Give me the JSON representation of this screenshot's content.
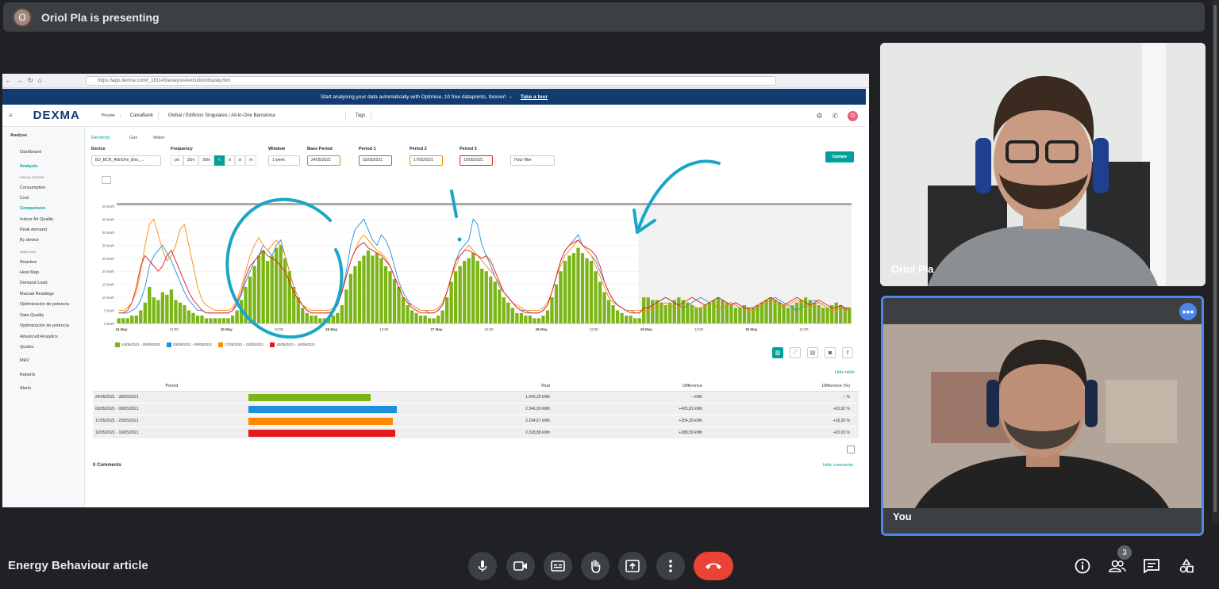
{
  "header": {
    "avatar_letter": "O",
    "title": "Oriol Pla is presenting"
  },
  "browser": {
    "url": "https://app.dexma.com/l_181143/analysis/evolution/display.htm"
  },
  "banner": {
    "text": "Start analysing your data automatically with Optimise. 10 free datapoints, forever! →",
    "cta": "Take a tour"
  },
  "app_header": {
    "logo": "DEXMA",
    "org_label": "Private",
    "org": "CaixaBank",
    "path": "Global / Edificios Singulares / All-in-One Barcelona",
    "tags": "Tags",
    "profile_letter": "O"
  },
  "sidebar": {
    "analyse": "Analyse",
    "dashboard": "Dashboard",
    "analysis": "Analysis",
    "visualization": "VISUALIZATION",
    "consumption": "Consumption",
    "cost": "Cost",
    "comparison": "Comparison",
    "iaq": "Indoor Air Quality",
    "peak": "Peak demand",
    "bydevice": "By device",
    "analysis_sec": "ANALYSIS",
    "reactive": "Reactive",
    "heatmap": "Heat Map",
    "demandload": "Demand Load",
    "manual": "Manual Readings",
    "opt1": "Optimización de potencia",
    "dq": "Data Quality",
    "opt2": "Optimización de potencia",
    "adv": "Advanced Analytics",
    "quotes": "Quotes",
    "mv": "M&V",
    "reports": "Reports",
    "alerts": "Alerts"
  },
  "filters": {
    "types": [
      "Electricity",
      "Gas",
      "Water"
    ],
    "device_label": "Device",
    "device": "ED_BCN_AllInOne_Elec_...",
    "frequency_label": "Frequency",
    "frequency": [
      "pd",
      "15m",
      "30m",
      "h",
      "d",
      "w",
      "m"
    ],
    "frequency_selected": "h",
    "window_label": "Window",
    "window": "1 week",
    "base_label": "Base Period",
    "base": "24/05/2021",
    "p1_label": "Period 1",
    "p1": "03/05/2021",
    "p2_label": "Period 2",
    "p2": "17/05/2021",
    "p3_label": "Period 3",
    "p3": "10/05/2021",
    "hour_filter": "Hour filter",
    "update": "Update"
  },
  "chart_data": {
    "type": "line",
    "ylabel": "kWh",
    "yticks": [
      "45 kWh",
      "40 kWh",
      "35 kWh",
      "30 kWh",
      "25 kWh",
      "20 kWh",
      "15 kWh",
      "10 kWh",
      "5 kWh",
      "0 kWh"
    ],
    "ylim": [
      0,
      45
    ],
    "xticks": [
      "24 May",
      "12:00",
      "25 May",
      "12:00",
      "26 May",
      "12:00",
      "27 May",
      "12:00",
      "28 May",
      "12:00",
      "29 May",
      "12:00",
      "30 May",
      "12:00"
    ],
    "series": [
      {
        "name": "24/05/2021 - 30/05/2021",
        "color": "#7cb518",
        "kind": "bar",
        "values": [
          2,
          2,
          2,
          3,
          3,
          5,
          8,
          14,
          10,
          9,
          12,
          11,
          13,
          9,
          8,
          7,
          5,
          4,
          3,
          3,
          2,
          2,
          2,
          2,
          2,
          2,
          3,
          5,
          9,
          14,
          18,
          22,
          26,
          28,
          24,
          26,
          29,
          30,
          25,
          20,
          14,
          10,
          6,
          4,
          3,
          3,
          2,
          2,
          2,
          3,
          4,
          7,
          13,
          19,
          22,
          24,
          26,
          28,
          26,
          27,
          25,
          22,
          20,
          17,
          14,
          10,
          7,
          5,
          4,
          3,
          3,
          2,
          2,
          3,
          5,
          10,
          16,
          20,
          22,
          24,
          25,
          27,
          24,
          21,
          20,
          18,
          16,
          13,
          10,
          8,
          6,
          4,
          4,
          3,
          3,
          2,
          2,
          3,
          5,
          10,
          15,
          20,
          24,
          26,
          27,
          29,
          27,
          25,
          24,
          20,
          16,
          12,
          9,
          7,
          5,
          4,
          3,
          3,
          2,
          2,
          10,
          10,
          9,
          9,
          8,
          7,
          8,
          9,
          10,
          9,
          8,
          7,
          6,
          6,
          7,
          8,
          9,
          10,
          9,
          8,
          7,
          6,
          6,
          7,
          6,
          6,
          7,
          8,
          9,
          10,
          9,
          8,
          7,
          6,
          7,
          8,
          9,
          10,
          9,
          8,
          7,
          6,
          6,
          7,
          8,
          7,
          6,
          6
        ]
      },
      {
        "name": "03/05/2021 - 09/05/2021",
        "color": "#1f8fdc",
        "kind": "line",
        "values": [
          4,
          4,
          4,
          5,
          6,
          9,
          14,
          22,
          26,
          28,
          30,
          27,
          24,
          20,
          16,
          12,
          9,
          7,
          5,
          5,
          4,
          4,
          4,
          4,
          4,
          4,
          5,
          7,
          11,
          16,
          20,
          24,
          26,
          30,
          28,
          26,
          30,
          32,
          26,
          20,
          14,
          10,
          7,
          5,
          4,
          4,
          4,
          4,
          4,
          5,
          7,
          12,
          20,
          30,
          36,
          38,
          40,
          36,
          32,
          30,
          34,
          32,
          28,
          22,
          16,
          12,
          9,
          7,
          6,
          5,
          5,
          4,
          4,
          5,
          7,
          12,
          18,
          24,
          28,
          30,
          32,
          40,
          38,
          30,
          26,
          22,
          18,
          14,
          12,
          10,
          8,
          6,
          5,
          5,
          4,
          4,
          4,
          5,
          7,
          12,
          18,
          24,
          28,
          30,
          32,
          34,
          30,
          28,
          26,
          24,
          20,
          16,
          12,
          9,
          7,
          6,
          5,
          5,
          4,
          4,
          6,
          6,
          7,
          8,
          9,
          10,
          9,
          8,
          7,
          6,
          7,
          8,
          9,
          10,
          9,
          8,
          7,
          6,
          6,
          7,
          8,
          7,
          6,
          6,
          5,
          5,
          6,
          7,
          8,
          9,
          10,
          9,
          8,
          7,
          6,
          5,
          6,
          7,
          8,
          9,
          8,
          7,
          6,
          5,
          5,
          6,
          6,
          5
        ]
      },
      {
        "name": "17/05/2021 - 23/05/2021",
        "color": "#ff8a00",
        "kind": "line",
        "values": [
          5,
          5,
          6,
          8,
          12,
          20,
          30,
          38,
          40,
          34,
          28,
          24,
          26,
          30,
          36,
          38,
          30,
          22,
          14,
          9,
          7,
          6,
          5,
          5,
          5,
          5,
          6,
          9,
          14,
          20,
          26,
          30,
          33,
          30,
          28,
          30,
          32,
          30,
          26,
          20,
          14,
          10,
          7,
          6,
          5,
          5,
          5,
          5,
          5,
          6,
          8,
          12,
          18,
          24,
          28,
          32,
          34,
          32,
          30,
          28,
          27,
          25,
          22,
          18,
          14,
          10,
          8,
          7,
          6,
          5,
          5,
          5,
          5,
          6,
          8,
          12,
          18,
          22,
          26,
          28,
          30,
          28,
          26,
          24,
          22,
          20,
          18,
          15,
          12,
          10,
          8,
          7,
          6,
          5,
          5,
          5,
          5,
          6,
          8,
          12,
          18,
          22,
          26,
          28,
          30,
          32,
          30,
          28,
          26,
          22,
          18,
          14,
          10,
          8,
          7,
          6,
          5,
          5,
          5,
          5,
          5,
          5,
          6,
          6,
          7,
          8,
          7,
          6,
          6,
          7,
          8,
          7,
          6,
          6,
          7,
          8,
          7,
          6,
          6,
          7,
          8,
          7,
          6,
          6,
          5,
          5,
          6,
          7,
          8,
          9,
          8,
          7,
          6,
          7,
          8,
          9,
          8,
          7,
          6,
          7,
          8,
          7,
          6,
          5,
          5,
          6,
          5,
          5
        ]
      },
      {
        "name": "10/05/2021 - 16/05/2021",
        "color": "#e31a1c",
        "kind": "line",
        "values": [
          4,
          4,
          5,
          8,
          14,
          22,
          26,
          24,
          22,
          20,
          22,
          26,
          28,
          24,
          20,
          16,
          12,
          9,
          7,
          5,
          4,
          4,
          4,
          4,
          4,
          4,
          5,
          8,
          12,
          18,
          22,
          24,
          26,
          28,
          26,
          25,
          24,
          22,
          20,
          16,
          12,
          9,
          7,
          5,
          4,
          4,
          4,
          4,
          4,
          5,
          7,
          12,
          18,
          24,
          28,
          30,
          31,
          29,
          28,
          27,
          26,
          24,
          22,
          18,
          14,
          10,
          8,
          6,
          5,
          4,
          4,
          4,
          4,
          5,
          7,
          12,
          18,
          24,
          26,
          28,
          28,
          27,
          26,
          25,
          26,
          24,
          20,
          16,
          12,
          10,
          8,
          6,
          5,
          4,
          4,
          4,
          4,
          5,
          7,
          12,
          18,
          24,
          28,
          30,
          31,
          32,
          30,
          29,
          28,
          26,
          22,
          16,
          12,
          9,
          7,
          6,
          5,
          4,
          4,
          4,
          6,
          6,
          7,
          8,
          9,
          10,
          9,
          8,
          7,
          8,
          9,
          10,
          9,
          8,
          7,
          8,
          9,
          10,
          9,
          8,
          7,
          8,
          7,
          6,
          6,
          6,
          7,
          8,
          9,
          10,
          9,
          8,
          7,
          8,
          9,
          10,
          9,
          8,
          7,
          8,
          9,
          8,
          7,
          6,
          6,
          7,
          6,
          6
        ]
      }
    ]
  },
  "tools": {
    "hide_table": "Hide table",
    "hide_comments": "Hide comments"
  },
  "table": {
    "headers": [
      "Period",
      "Total",
      "Difference",
      "Difference (%)"
    ],
    "rows": [
      {
        "period": "24/05/2021 - 30/05/2021",
        "total": "1.940,28 kWh",
        "diff": "-- kWh",
        "pct": "-- %",
        "color": "#7cb518",
        "fraction": 0.64
      },
      {
        "period": "03/05/2021 - 09/05/2021",
        "total": "2.346,09 kWh",
        "diff": "+405,81 kWh",
        "pct": "+20,92 %",
        "color": "#1f8fdc",
        "fraction": 0.78
      },
      {
        "period": "17/05/2021 - 23/05/2021",
        "total": "2.294,67 kWh",
        "diff": "+354,39 kWh",
        "pct": "+18,26 %",
        "color": "#ff8a00",
        "fraction": 0.76
      },
      {
        "period": "10/05/2021 - 16/05/2021",
        "total": "2.328,88 kWh",
        "diff": "+388,59 kWh",
        "pct": "+20,03 %",
        "color": "#e31a1c",
        "fraction": 0.77
      }
    ]
  },
  "comments": {
    "title": "0 Comments"
  },
  "participants": {
    "p1": "Oriol Pla",
    "p2": "You"
  },
  "footer": {
    "meeting_title": "Energy Behaviour article",
    "participants_count": "3"
  }
}
